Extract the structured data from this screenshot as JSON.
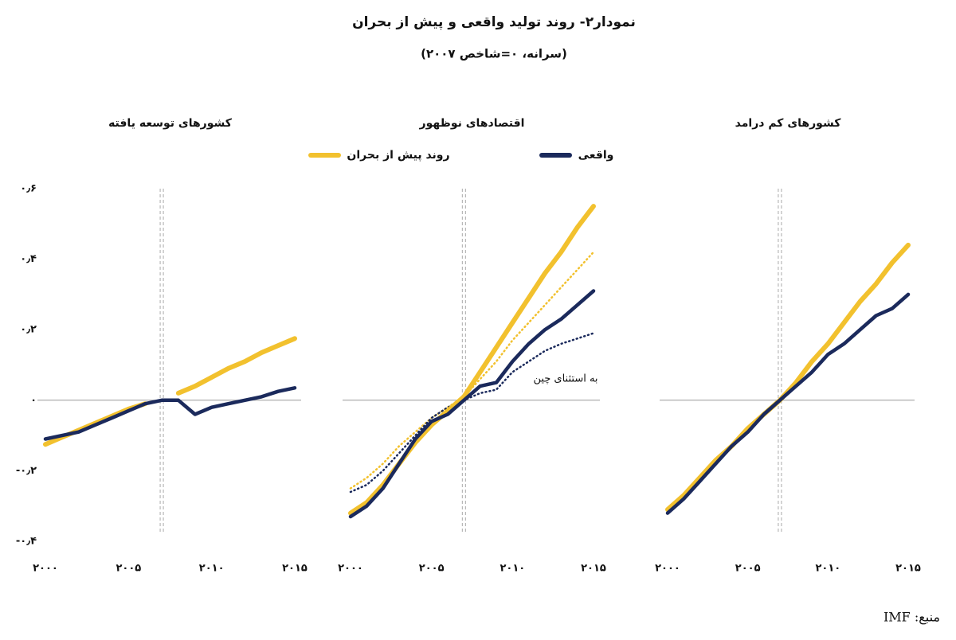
{
  "title": "نمودار۲- روند تولید واقعی و پیش از بحران",
  "subtitle": "(سرانه، ۰=شاخص ۲۰۰۷)",
  "legend": [
    {
      "name": "روند پیش از بحران",
      "color": "#f2c12e"
    },
    {
      "name": "واقعی",
      "color": "#1b2a5c"
    }
  ],
  "source": "منبع: IMF",
  "chart_data": [
    {
      "type": "line",
      "title": "کشورهای توسعه یافته",
      "x": [
        2000,
        2001,
        2002,
        2003,
        2004,
        2005,
        2006,
        2007,
        2008,
        2009,
        2010,
        2011,
        2012,
        2013,
        2014,
        2015
      ],
      "xlim": [
        2000,
        2015
      ],
      "ylim": [
        -0.4,
        0.6
      ],
      "vline": 2007,
      "xticks": [
        {
          "value": 2000,
          "label": "۲۰۰۰"
        },
        {
          "value": 2005,
          "label": "۲۰۰۵"
        },
        {
          "value": 2010,
          "label": "۲۰۱۰"
        },
        {
          "value": 2015,
          "label": "۲۰۱۵"
        }
      ],
      "yticks": [
        {
          "value": 0.6,
          "label": "۰٫۶"
        },
        {
          "value": 0.4,
          "label": "۰٫۴"
        },
        {
          "value": 0.2,
          "label": "۰٫۲"
        },
        {
          "value": 0,
          "label": "۰"
        },
        {
          "value": -0.2,
          "label": "-۰٫۲"
        },
        {
          "value": -0.4,
          "label": "-۰٫۴"
        }
      ],
      "series": [
        {
          "color": "#f2c12e",
          "values": [
            -0.125,
            -0.105,
            -0.085,
            -0.065,
            -0.045,
            -0.025,
            -0.01,
            null,
            0.02,
            0.04,
            0.065,
            0.09,
            0.11,
            0.135,
            0.155,
            0.175
          ]
        },
        {
          "color": "#1b2a5c",
          "values": [
            -0.11,
            -0.1,
            -0.09,
            -0.07,
            -0.05,
            -0.03,
            -0.01,
            0,
            0,
            -0.04,
            -0.02,
            -0.01,
            0,
            0.01,
            0.025,
            0.035
          ]
        }
      ]
    },
    {
      "type": "line",
      "title": "اقتصادهای نوظهور",
      "x": [
        2000,
        2001,
        2002,
        2003,
        2004,
        2005,
        2006,
        2007,
        2008,
        2009,
        2010,
        2011,
        2012,
        2013,
        2014,
        2015
      ],
      "xlim": [
        2000,
        2015
      ],
      "ylim": [
        -0.4,
        0.6
      ],
      "vline": 2007,
      "xticks": [
        {
          "value": 2000,
          "label": "۲۰۰۰"
        },
        {
          "value": 2005,
          "label": "۲۰۰۵"
        },
        {
          "value": 2010,
          "label": "۲۰۱۰"
        },
        {
          "value": 2015,
          "label": "۲۰۱۵"
        }
      ],
      "annotation": "به استثنای چین",
      "series": [
        {
          "color": "#f2c12e",
          "dashed": true,
          "values": [
            -0.25,
            -0.22,
            -0.18,
            -0.13,
            -0.09,
            -0.05,
            -0.02,
            0.01,
            0.06,
            0.11,
            0.17,
            0.22,
            0.27,
            0.32,
            0.37,
            0.42
          ]
        },
        {
          "color": "#1b2a5c",
          "dashed": true,
          "values": [
            -0.26,
            -0.24,
            -0.2,
            -0.15,
            -0.1,
            -0.05,
            -0.02,
            0,
            0.02,
            0.03,
            0.08,
            0.11,
            0.14,
            0.16,
            0.175,
            0.19
          ]
        },
        {
          "color": "#f2c12e",
          "values": [
            -0.32,
            -0.29,
            -0.24,
            -0.18,
            -0.12,
            -0.07,
            -0.03,
            0.01,
            0.08,
            0.15,
            0.22,
            0.29,
            0.36,
            0.42,
            0.49,
            0.55
          ]
        },
        {
          "color": "#1b2a5c",
          "values": [
            -0.33,
            -0.3,
            -0.25,
            -0.18,
            -0.11,
            -0.06,
            -0.04,
            0,
            0.04,
            0.05,
            0.11,
            0.16,
            0.2,
            0.23,
            0.27,
            0.31
          ]
        }
      ]
    },
    {
      "type": "line",
      "title": "کشورهای کم درامد",
      "x": [
        2000,
        2001,
        2002,
        2003,
        2004,
        2005,
        2006,
        2007,
        2008,
        2009,
        2010,
        2011,
        2012,
        2013,
        2014,
        2015
      ],
      "xlim": [
        2000,
        2015
      ],
      "ylim": [
        -0.4,
        0.6
      ],
      "vline": 2007,
      "xticks": [
        {
          "value": 2000,
          "label": "۲۰۰۰"
        },
        {
          "value": 2005,
          "label": "۲۰۰۵"
        },
        {
          "value": 2010,
          "label": "۲۰۱۰"
        },
        {
          "value": 2015,
          "label": "۲۰۱۵"
        }
      ],
      "series": [
        {
          "color": "#f2c12e",
          "values": [
            -0.31,
            -0.27,
            -0.22,
            -0.17,
            -0.13,
            -0.08,
            -0.04,
            0,
            0.05,
            0.11,
            0.16,
            0.22,
            0.28,
            0.33,
            0.39,
            0.44
          ]
        },
        {
          "color": "#1b2a5c",
          "values": [
            -0.32,
            -0.28,
            -0.23,
            -0.18,
            -0.13,
            -0.09,
            -0.04,
            0,
            0.04,
            0.08,
            0.13,
            0.16,
            0.2,
            0.24,
            0.26,
            0.3
          ]
        }
      ]
    }
  ]
}
